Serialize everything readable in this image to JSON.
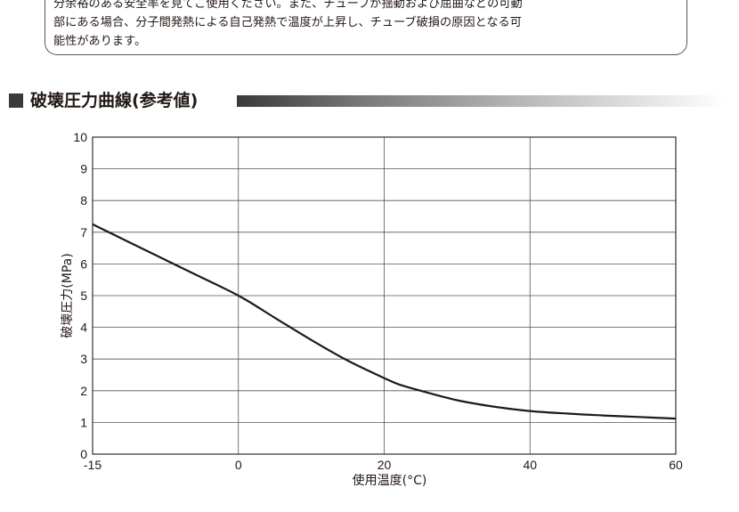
{
  "note": {
    "text": "分余裕のある安全率を見てご使用ください。また、チューブが揺動および屈曲などの可動\n部にある場合、分子間発熱による自己発熱で温度が上昇し、チューブ破損の原因となる可\n能性があります。"
  },
  "section": {
    "title": "破壊圧力曲線(参考値)"
  },
  "chart_data": {
    "type": "line",
    "title": "",
    "xlabel": "使用温度(°C)",
    "ylabel": "破壊圧力(MPa)",
    "xlim": [
      -15,
      60
    ],
    "ylim": [
      0,
      10
    ],
    "x_ticks": [
      -15,
      0,
      20,
      40,
      60
    ],
    "y_ticks": [
      0,
      1,
      2,
      3,
      4,
      5,
      6,
      7,
      8,
      9,
      10
    ],
    "grid": true,
    "series": [
      {
        "name": "",
        "color": "#231815",
        "x": [
          -15,
          -10,
          -5,
          0,
          5,
          10,
          15,
          20,
          22,
          25,
          30,
          35,
          40,
          45,
          50,
          55,
          60
        ],
        "y": [
          7.25,
          6.5,
          5.75,
          5.0,
          4.3,
          3.6,
          2.95,
          2.4,
          2.2,
          2.0,
          1.7,
          1.5,
          1.36,
          1.28,
          1.22,
          1.17,
          1.12
        ]
      }
    ]
  }
}
